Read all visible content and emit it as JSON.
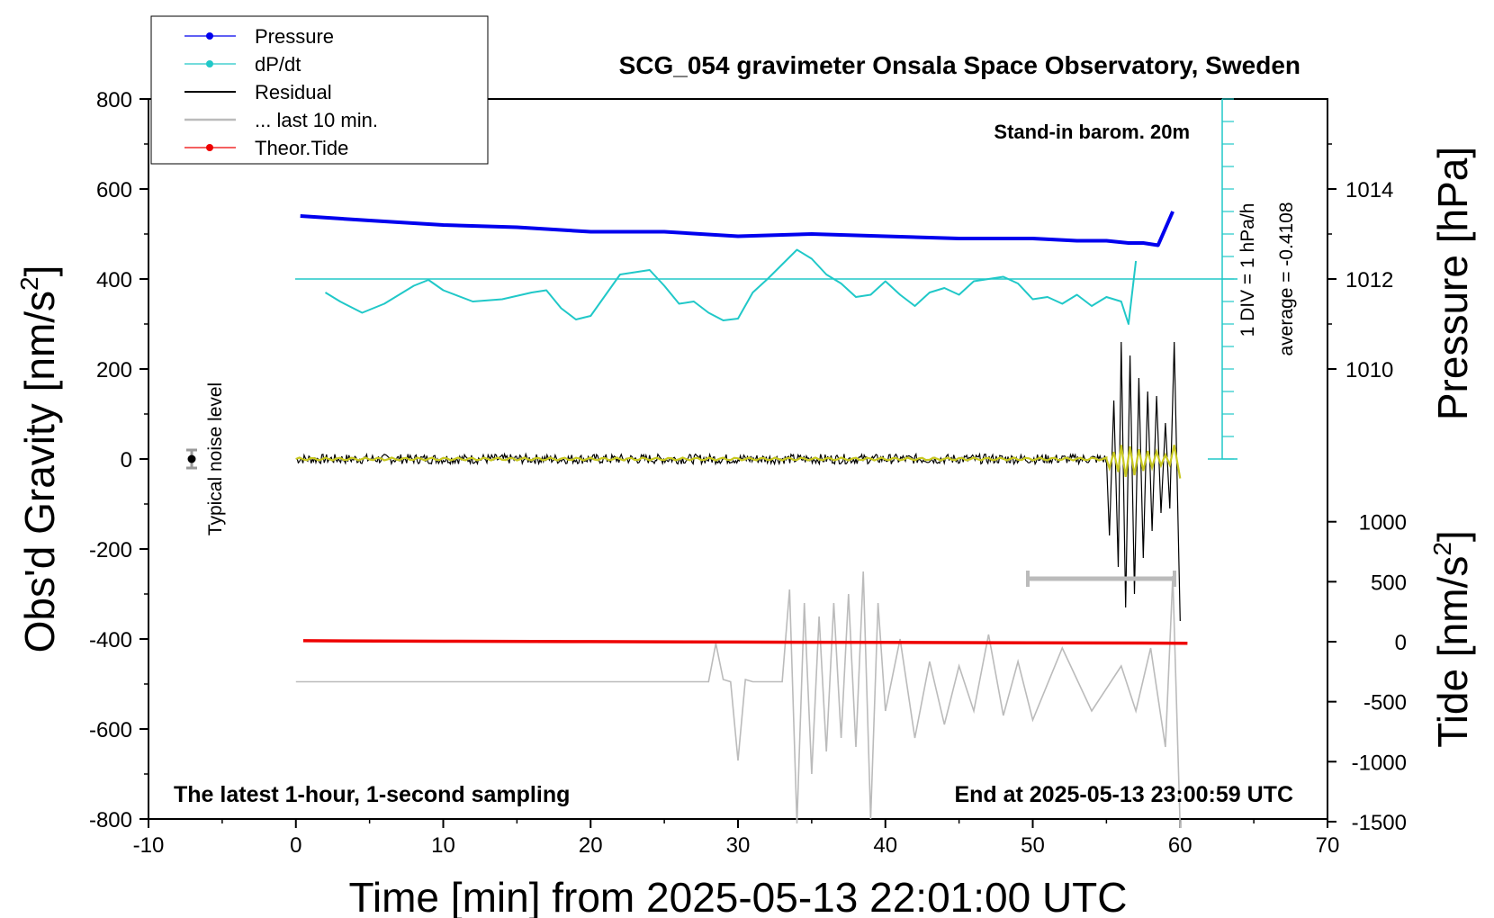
{
  "chart_data": {
    "type": "line",
    "title": "SCG_054 gravimeter Onsala Space Observatory, Sweden",
    "xlabel": "Time [min] from 2025-05-13 22:01:00 UTC",
    "ylabel_left": "Obs'd Gravity [nm/s",
    "ylabel_left_sup": "2",
    "ylabel_left_close": "]",
    "ylabel_pressure": "Pressure [hPa]",
    "ylabel_tide": "Tide [nm/s",
    "ylabel_tide_sup": "2",
    "ylabel_tide_close": "]",
    "xlim": [
      -10,
      70
    ],
    "ylim": [
      -800,
      800
    ],
    "x_ticks": [
      "-10",
      "0",
      "10",
      "20",
      "30",
      "40",
      "50",
      "60",
      "70"
    ],
    "y_ticks": [
      "800",
      "600",
      "400",
      "200",
      "0",
      "-200",
      "-400",
      "-600",
      "-800"
    ],
    "pressure_ticks": [
      "1014",
      "1012",
      "1010"
    ],
    "tide_ticks": [
      "1000",
      "500",
      "0",
      "-500",
      "-1000",
      "-1500"
    ],
    "annotations": {
      "barometer": "Stand-in barom. 20m",
      "div_label": "1 DIV = 1 hPa/h",
      "average": "average = -0.4108",
      "noise": "Typical noise level",
      "sampling": "The latest 1-hour, 1-second sampling",
      "end_time": "End at 2025-05-13 23:00:59 UTC"
    },
    "legend_position": "top-left",
    "series": [
      {
        "name": "Pressure",
        "color": "#0000ee",
        "unit": "hPa",
        "x": [
          0.3,
          5,
          10,
          15,
          20,
          25,
          30,
          35,
          40,
          45,
          50,
          53,
          55,
          56.5,
          57.5,
          58.5,
          59.5
        ],
        "y": [
          1013.4,
          1013.3,
          1013.2,
          1013.15,
          1013.05,
          1013.05,
          1012.95,
          1013.0,
          1012.95,
          1012.9,
          1012.9,
          1012.85,
          1012.85,
          1012.8,
          1012.8,
          1012.75,
          1013.5
        ]
      },
      {
        "name": "dP/dt",
        "color": "#20c8c8",
        "unit": "nm/s2 (scaled)",
        "x": [
          2,
          3,
          4.5,
          6,
          8,
          9,
          10,
          12,
          14,
          16,
          17,
          18,
          19,
          20,
          22,
          24,
          25,
          26,
          27,
          28,
          29,
          30,
          31,
          32,
          34,
          35,
          36,
          37,
          38,
          39,
          40,
          41,
          42,
          43,
          44,
          45,
          46,
          47,
          48,
          49,
          50,
          51,
          52,
          53,
          54,
          55,
          56,
          56.5,
          57
        ],
        "y": [
          370,
          350,
          325,
          345,
          385,
          398,
          375,
          350,
          355,
          370,
          375,
          335,
          310,
          318,
          410,
          420,
          385,
          345,
          350,
          325,
          308,
          312,
          370,
          400,
          465,
          445,
          410,
          390,
          360,
          365,
          395,
          365,
          340,
          370,
          380,
          365,
          395,
          400,
          405,
          390,
          355,
          360,
          345,
          365,
          340,
          360,
          350,
          300,
          440
        ]
      },
      {
        "name": "Residual",
        "color": "#000000",
        "unit": "nm/s2",
        "x": [
          0,
          55,
          55.2,
          55.5,
          55.8,
          56,
          56.3,
          56.6,
          56.9,
          57.2,
          57.5,
          57.8,
          58.1,
          58.4,
          58.7,
          59,
          59.3,
          59.6,
          60
        ],
        "y": [
          0,
          0,
          -170,
          130,
          -240,
          260,
          -330,
          230,
          -300,
          180,
          -220,
          150,
          -160,
          140,
          -120,
          80,
          -110,
          260,
          -360
        ]
      },
      {
        "name": "... last 10 min.",
        "color": "#bbbbbb",
        "unit": "nm/s2",
        "x": [
          0,
          10,
          20,
          28,
          28.5,
          29,
          29.5,
          30,
          30.5,
          31,
          33,
          33.5,
          34,
          34.5,
          35,
          35.5,
          36,
          36.5,
          37,
          37.5,
          38,
          38.5,
          39,
          39.5,
          40,
          41,
          42,
          43,
          44,
          45,
          46,
          47,
          48,
          49,
          50,
          52,
          54,
          56,
          57,
          58,
          59,
          59.5,
          60
        ],
        "y": [
          -495,
          -495,
          -495,
          -495,
          -410,
          -490,
          -495,
          -670,
          -490,
          -495,
          -495,
          -290,
          -810,
          -320,
          -700,
          -350,
          -650,
          -320,
          -620,
          -300,
          -640,
          -250,
          -800,
          -320,
          -560,
          -400,
          -620,
          -450,
          -590,
          -460,
          -560,
          -390,
          -570,
          -450,
          -580,
          -420,
          -560,
          -460,
          -560,
          -420,
          -640,
          -260,
          -820
        ]
      },
      {
        "name": "Theor.Tide",
        "color": "#ee0000",
        "unit": "nm/s2",
        "x": [
          0.5,
          10,
          20,
          30,
          40,
          50,
          60.5
        ],
        "y": [
          8,
          4,
          1,
          -3,
          -6,
          -9,
          -13
        ]
      }
    ]
  }
}
